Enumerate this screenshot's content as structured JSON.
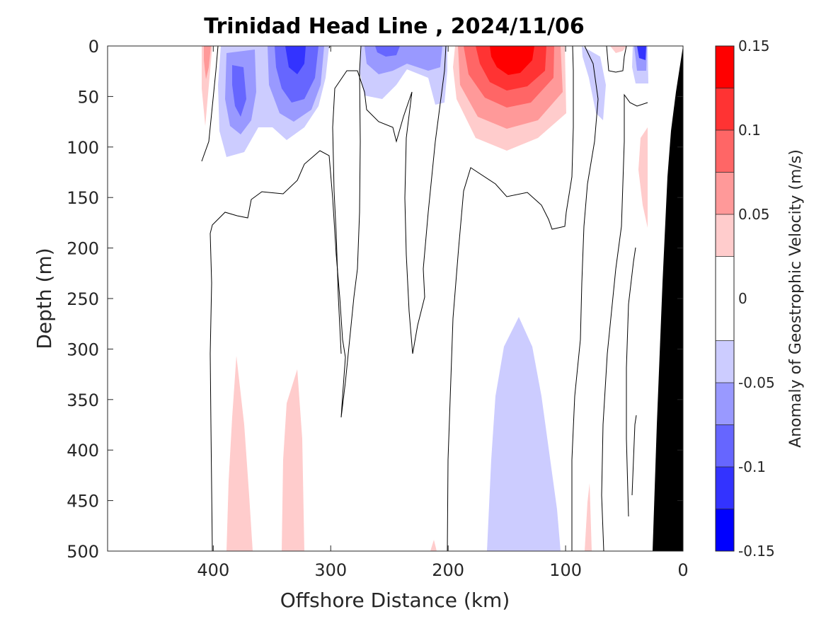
{
  "chart_data": {
    "type": "heatmap",
    "subtype": "filled-contour-section",
    "title": "Trinidad Head Line , 2024/11/06",
    "xlabel": "Offshore Distance (km)",
    "ylabel": "Depth (m)",
    "xlim": [
      490,
      0
    ],
    "ylim": [
      0,
      500
    ],
    "x_reversed": true,
    "y_reversed": true,
    "xticks": [
      400,
      300,
      200,
      100,
      0
    ],
    "xtick_labels": [
      "400",
      "300",
      "200",
      "100",
      "0"
    ],
    "yticks": [
      0,
      50,
      100,
      150,
      200,
      250,
      300,
      350,
      400,
      450,
      500
    ],
    "ytick_labels": [
      "0",
      "50",
      "100",
      "150",
      "200",
      "250",
      "300",
      "350",
      "400",
      "450",
      "500"
    ],
    "colorbar": {
      "label": "Anomaly of Geostrophic Velocity (m/s)",
      "range": [
        -0.15,
        0.15
      ],
      "ticks": [
        0.15,
        0.1,
        0.05,
        0,
        -0.05,
        -0.1,
        -0.15
      ],
      "tick_labels": [
        "0.15",
        "0.1",
        "0.05",
        "0",
        "-0.05",
        "-0.1",
        "-0.15"
      ],
      "levels": [
        -0.15,
        -0.125,
        -0.1,
        -0.075,
        -0.05,
        -0.025,
        0.025,
        0.05,
        0.075,
        0.1,
        0.125,
        0.15
      ],
      "colors": [
        "#0000ff",
        "#3333ff",
        "#6666ff",
        "#9999ff",
        "#ccccff",
        "#ffffff",
        "#ffcccc",
        "#ff9999",
        "#ff6666",
        "#ff3333",
        "#ff0000"
      ]
    },
    "grid": false,
    "bathymetry_color": "#000000",
    "regions": [
      {
        "name": "positive core",
        "x": [
          200,
          95
        ],
        "depth": [
          0,
          100
        ],
        "max_value": 0.14
      },
      {
        "name": "negative cell",
        "x": [
          375,
          330
        ],
        "depth": [
          0,
          110
        ],
        "min_value": -0.09
      },
      {
        "name": "negative cell",
        "x": [
          340,
          300
        ],
        "depth": [
          0,
          90
        ],
        "min_value": -0.11
      },
      {
        "name": "negative cell",
        "x": [
          270,
          220
        ],
        "depth": [
          0,
          50
        ],
        "min_value": -0.1
      },
      {
        "name": "negative cell",
        "x": [
          45,
          30
        ],
        "depth": [
          0,
          35
        ],
        "min_value": -0.1
      },
      {
        "name": "deep negative lens",
        "x": [
          165,
          105
        ],
        "depth": [
          270,
          500
        ],
        "min_value": -0.04
      },
      {
        "name": "deep positive lens",
        "x": [
          385,
          365
        ],
        "depth": [
          305,
          500
        ],
        "max_value": 0.03
      },
      {
        "name": "deep positive lens",
        "x": [
          340,
          320
        ],
        "depth": [
          320,
          500
        ],
        "max_value": 0.03
      },
      {
        "name": "shelf positive lens",
        "x": [
          38,
          28
        ],
        "depth": [
          80,
          180
        ],
        "max_value": 0.03
      }
    ]
  }
}
